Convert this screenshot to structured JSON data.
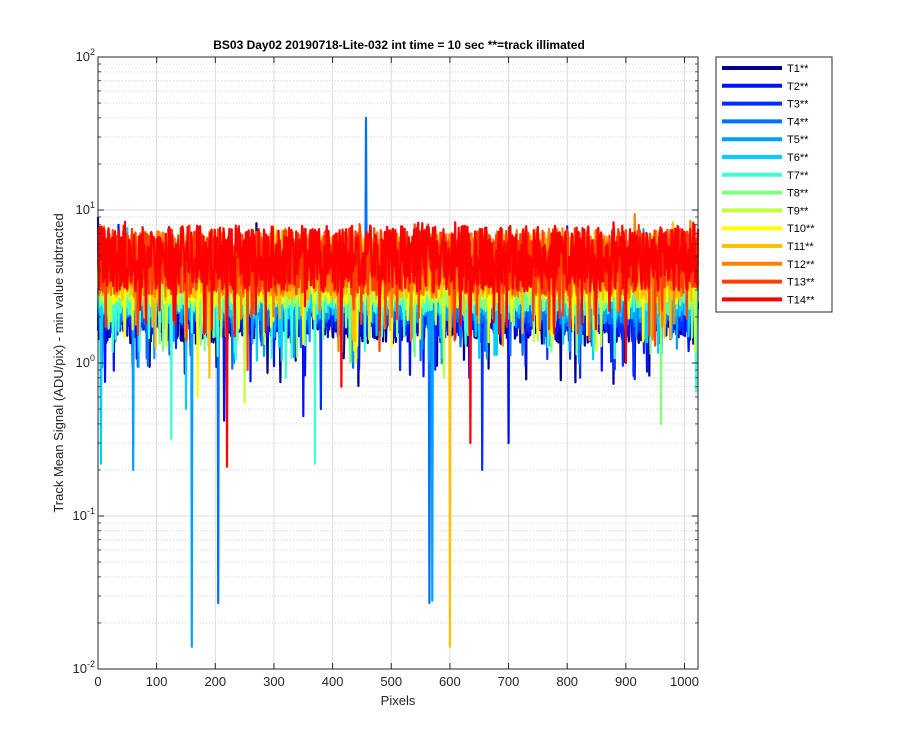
{
  "chart_data": {
    "type": "line",
    "title": "BS03 Day02 20190718-Lite-032 int time = 10 sec   **=track illimated",
    "xlabel": "Pixels",
    "ylabel": "Track Mean Signal (ADU/pix) - min value subtracted",
    "xlim": [
      0,
      1023
    ],
    "ylim": [
      0.01,
      100
    ],
    "yscale": "log",
    "x_ticks": [
      "0",
      "100",
      "200",
      "300",
      "400",
      "500",
      "600",
      "700",
      "800",
      "900",
      "1000"
    ],
    "y_ticks": [
      {
        "base": "10",
        "exp": "-2"
      },
      {
        "base": "10",
        "exp": "-1"
      },
      {
        "base": "10",
        "exp": "0"
      },
      {
        "base": "10",
        "exp": "1"
      },
      {
        "base": "10",
        "exp": "2"
      }
    ],
    "grid": true,
    "legend_position": "outside-right",
    "series": [
      {
        "name": "T1**",
        "color": "#00008f",
        "spikes": [
          [
            0,
            9.0
          ],
          [
            270,
            8.2
          ]
        ],
        "dips": [
          [
            110,
            1.4
          ],
          [
            300,
            1.3
          ],
          [
            630,
            1.3
          ],
          [
            830,
            1.3
          ]
        ]
      },
      {
        "name": "T2**",
        "color": "#0010ff",
        "spikes": [
          [
            35,
            8.0
          ],
          [
            800,
            7.8
          ]
        ],
        "dips": [
          [
            215,
            0.42
          ],
          [
            350,
            0.45
          ],
          [
            700,
            0.3
          ]
        ]
      },
      {
        "name": "T3**",
        "color": "#0030ff",
        "spikes": [
          [
            120,
            7.5
          ]
        ],
        "dips": [
          [
            380,
            0.5
          ],
          [
            515,
            0.9
          ],
          [
            655,
            0.2
          ],
          [
            880,
            0.9
          ]
        ]
      },
      {
        "name": "T4**",
        "color": "#0070ff",
        "spikes": [
          [
            457,
            40.0
          ]
        ],
        "dips": [
          [
            20,
            1.8
          ],
          [
            205,
            0.027
          ],
          [
            565,
            0.027
          ],
          [
            660,
            1.2
          ]
        ]
      },
      {
        "name": "T5**",
        "color": "#00a0ff",
        "spikes": [
          [
            930,
            7.5
          ]
        ],
        "dips": [
          [
            60,
            0.2
          ],
          [
            160,
            0.014
          ],
          [
            570,
            0.028
          ],
          [
            820,
            1.0
          ]
        ]
      },
      {
        "name": "T6**",
        "color": "#00d0ff",
        "spikes": [
          [
            50,
            7.6
          ]
        ],
        "dips": [
          [
            5,
            0.22
          ],
          [
            150,
            0.5
          ],
          [
            600,
            1.0
          ],
          [
            770,
            1.3
          ]
        ]
      },
      {
        "name": "T7**",
        "color": "#40ffd0",
        "spikes": [
          [
            700,
            7.8
          ]
        ],
        "dips": [
          [
            125,
            0.32
          ],
          [
            320,
            0.8
          ],
          [
            370,
            0.22
          ],
          [
            1020,
            0.65
          ]
        ]
      },
      {
        "name": "T8**",
        "color": "#80ff80",
        "spikes": [
          [
            140,
            7.6
          ]
        ],
        "dips": [
          [
            430,
            1.0
          ],
          [
            540,
            1.1
          ],
          [
            960,
            0.4
          ]
        ]
      },
      {
        "name": "T9**",
        "color": "#c0ff40",
        "spikes": [
          [
            620,
            7.7
          ]
        ],
        "dips": [
          [
            250,
            0.55
          ],
          [
            590,
            0.8
          ],
          [
            750,
            1.4
          ]
        ]
      },
      {
        "name": "T10**",
        "color": "#ffff00",
        "spikes": [
          [
            300,
            7.8
          ]
        ],
        "dips": [
          [
            170,
            0.6
          ],
          [
            440,
            1.0
          ],
          [
            850,
            1.2
          ]
        ]
      },
      {
        "name": "T11**",
        "color": "#ffc000",
        "spikes": [
          [
            980,
            8.3
          ]
        ],
        "dips": [
          [
            190,
            0.8
          ],
          [
            600,
            0.014
          ]
        ]
      },
      {
        "name": "T12**",
        "color": "#ff8000",
        "spikes": [
          [
            10,
            7.8
          ],
          [
            545,
            8.0
          ],
          [
            915,
            9.4
          ],
          [
            1010,
            8.5
          ]
        ],
        "dips": [
          [
            410,
            1.2
          ],
          [
            690,
            1.3
          ]
        ]
      },
      {
        "name": "T13**",
        "color": "#ff4000",
        "spikes": [
          [
            780,
            7.7
          ]
        ],
        "dips": [
          [
            255,
            0.9
          ],
          [
            480,
            1.2
          ],
          [
            950,
            1.3
          ]
        ]
      },
      {
        "name": "T14**",
        "color": "#ff0000",
        "spikes": [
          [
            330,
            7.4
          ]
        ],
        "dips": [
          [
            220,
            0.21
          ],
          [
            415,
            0.7
          ],
          [
            635,
            0.3
          ],
          [
            900,
            1.0
          ]
        ]
      }
    ]
  }
}
